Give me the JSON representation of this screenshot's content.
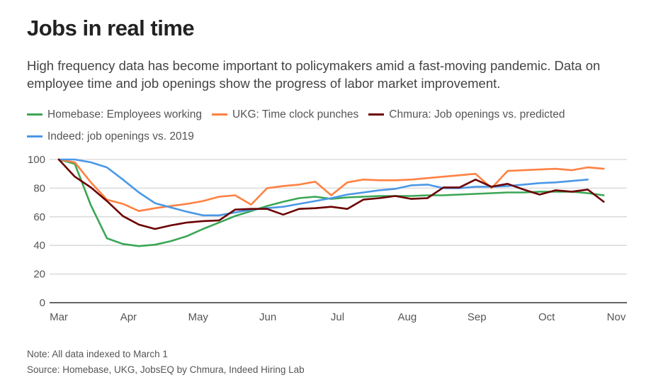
{
  "header": {
    "title": "Jobs in real time",
    "subtitle": "High frequency data has become important to policymakers amid a fast-moving pandemic. Data on employee time and job openings show the progress of labor market improvement."
  },
  "footer": {
    "note": "Note: All data indexed to March 1",
    "source": "Source: Homebase, UKG, JobsEQ by Chmura, Indeed Hiring Lab"
  },
  "chart_data": {
    "type": "line",
    "title": "Jobs in real time",
    "xlabel": "",
    "ylabel": "",
    "ylim": [
      0,
      100
    ],
    "yticks": [
      "0",
      "20",
      "40",
      "60",
      "80",
      "100"
    ],
    "ytick_values": [
      0,
      20,
      40,
      60,
      80,
      100
    ],
    "xlim": [
      0,
      8
    ],
    "xticks": [
      "Mar",
      "Apr",
      "May",
      "Jun",
      "Jul",
      "Aug",
      "Sep",
      "Oct",
      "Nov"
    ],
    "grid": true,
    "legend_position": "top-left",
    "series": [
      {
        "name": "Homebase: Employees working",
        "color": "#3aa655",
        "x": [
          0,
          0.23,
          0.46,
          0.69,
          0.92,
          1.15,
          1.38,
          1.61,
          1.84,
          2.07,
          2.3,
          2.53,
          2.76,
          2.99,
          3.22,
          3.45,
          3.68,
          3.91,
          4.14,
          4.37,
          4.6,
          4.83,
          5.06,
          5.29,
          5.52,
          5.75,
          5.98,
          6.21,
          6.44,
          6.67,
          6.9,
          7.13,
          7.36,
          7.59,
          7.82
        ],
        "y": [
          100,
          97,
          68,
          45,
          41,
          39.5,
          40.5,
          43,
          46.5,
          51.5,
          56,
          60.5,
          64,
          67.5,
          70.5,
          73,
          74,
          72.5,
          73.5,
          74,
          74.5,
          74.5,
          74.5,
          75,
          75,
          75.5,
          76,
          76.5,
          77,
          77,
          77.5,
          77.5,
          77.5,
          76.5,
          75
        ]
      },
      {
        "name": "UKG: Time clock punches",
        "color": "#ff8142",
        "x": [
          0,
          0.23,
          0.46,
          0.69,
          0.92,
          1.15,
          1.38,
          1.61,
          1.84,
          2.07,
          2.3,
          2.53,
          2.76,
          2.99,
          3.22,
          3.45,
          3.68,
          3.91,
          4.14,
          4.37,
          4.6,
          4.83,
          5.06,
          5.29,
          5.52,
          5.75,
          5.98,
          6.21,
          6.44,
          6.67,
          6.9,
          7.13,
          7.36,
          7.59,
          7.82
        ],
        "y": [
          100,
          98,
          84,
          72,
          69,
          64,
          66,
          67.5,
          69,
          71,
          74,
          75,
          68.5,
          80,
          81.5,
          82.5,
          84.5,
          75,
          84,
          86,
          85.5,
          85.5,
          86,
          87,
          88,
          89,
          90,
          80,
          92,
          92.5,
          93,
          93.5,
          92.5,
          94.5,
          93.5
        ]
      },
      {
        "name": "Chmura: Job openings vs. predicted",
        "color": "#6b0000",
        "x": [
          0,
          0.23,
          0.46,
          0.69,
          0.92,
          1.15,
          1.38,
          1.61,
          1.84,
          2.07,
          2.3,
          2.53,
          2.76,
          2.99,
          3.22,
          3.45,
          3.68,
          3.91,
          4.14,
          4.37,
          4.6,
          4.83,
          5.06,
          5.29,
          5.52,
          5.75,
          5.98,
          6.21,
          6.44,
          6.67,
          6.9,
          7.13,
          7.36,
          7.59,
          7.82
        ],
        "y": [
          100,
          88,
          80.5,
          71,
          60.5,
          54.5,
          51.5,
          54,
          56,
          57,
          57.5,
          65,
          65.5,
          65.5,
          61.5,
          65.5,
          66,
          67,
          65.5,
          72,
          73,
          74.5,
          72.5,
          73,
          80.5,
          80.5,
          86,
          81,
          83,
          79,
          75.5,
          78.5,
          77.5,
          79,
          70.5
        ]
      },
      {
        "name": "Indeed: job openings vs. 2019",
        "color": "#4a98e6",
        "x": [
          0,
          0.23,
          0.46,
          0.69,
          0.92,
          1.15,
          1.38,
          1.61,
          1.84,
          2.07,
          2.3,
          2.53,
          2.76,
          2.99,
          3.22,
          3.45,
          3.68,
          3.91,
          4.14,
          4.37,
          4.6,
          4.83,
          5.06,
          5.29,
          5.52,
          5.75,
          5.98,
          6.21,
          6.44,
          6.67,
          6.9,
          7.13,
          7.36,
          7.59
        ],
        "y": [
          100,
          100,
          98,
          94.5,
          86,
          77,
          69.5,
          66.5,
          63.5,
          61,
          61,
          63,
          65,
          66,
          67,
          69,
          71,
          73,
          75.5,
          77,
          78.5,
          79.5,
          82,
          82.5,
          80,
          80,
          81,
          81,
          81.5,
          82.5,
          83.5,
          84,
          85,
          86
        ]
      }
    ]
  }
}
